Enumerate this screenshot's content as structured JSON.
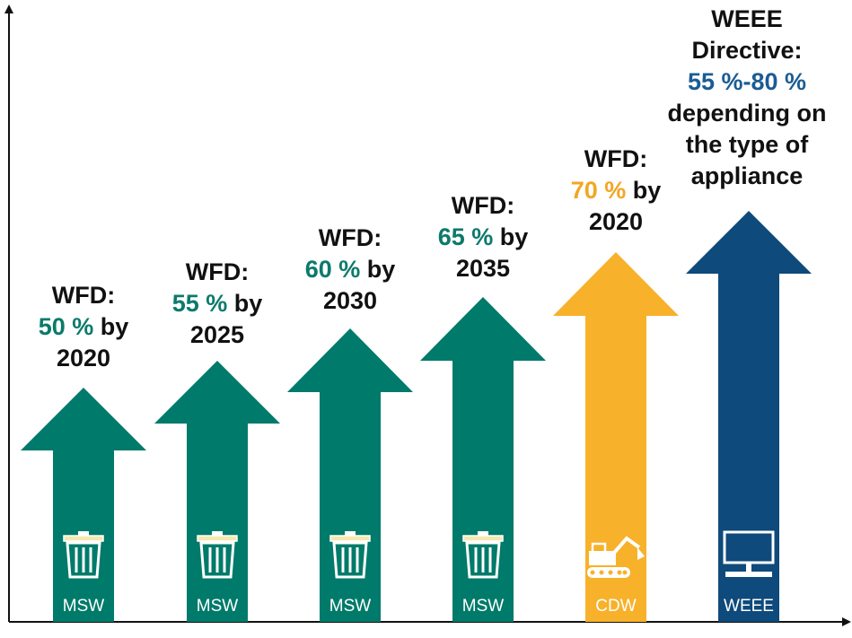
{
  "colors": {
    "msw": "#007A6A",
    "cdw": "#F7B12A",
    "weee": "#0E4A7B",
    "pct_msw": "#0B7A6B",
    "pct_cdw": "#F2A623",
    "pct_weee": "#1B5C93"
  },
  "arrows": [
    {
      "category": "MSW",
      "icon": "trash-bin-icon",
      "color_key": "msw",
      "lines": [
        [
          "WFD:"
        ],
        [
          "50 %",
          " by"
        ],
        [
          "2020"
        ]
      ]
    },
    {
      "category": "MSW",
      "icon": "trash-bin-icon",
      "color_key": "msw",
      "lines": [
        [
          "WFD:"
        ],
        [
          "55 %",
          " by"
        ],
        [
          "2025"
        ]
      ]
    },
    {
      "category": "MSW",
      "icon": "trash-bin-icon",
      "color_key": "msw",
      "lines": [
        [
          "WFD:"
        ],
        [
          "60 %",
          " by"
        ],
        [
          "2030"
        ]
      ]
    },
    {
      "category": "MSW",
      "icon": "trash-bin-icon",
      "color_key": "msw",
      "lines": [
        [
          "WFD:"
        ],
        [
          "65 %",
          " by"
        ],
        [
          "2035"
        ]
      ]
    },
    {
      "category": "CDW",
      "icon": "excavator-icon",
      "color_key": "cdw",
      "lines": [
        [
          "WFD:"
        ],
        [
          "70 %",
          " by"
        ],
        [
          "2020"
        ]
      ]
    },
    {
      "category": "WEEE",
      "icon": "computer-monitor-icon",
      "color_key": "weee",
      "lines": [
        [
          "WEEE"
        ],
        [
          "Directive:"
        ],
        [
          "55 %-80 %"
        ],
        [
          "depending on"
        ],
        [
          "the type of"
        ],
        [
          "appliance"
        ]
      ]
    }
  ]
}
